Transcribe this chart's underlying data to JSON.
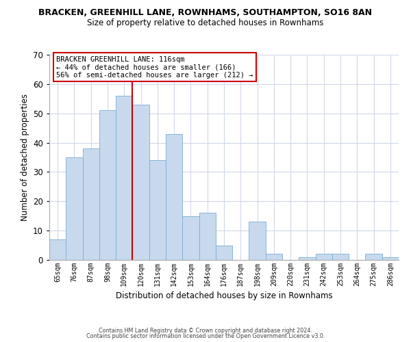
{
  "title1": "BRACKEN, GREENHILL LANE, ROWNHAMS, SOUTHAMPTON, SO16 8AN",
  "title2": "Size of property relative to detached houses in Rownhams",
  "xlabel": "Distribution of detached houses by size in Rownhams",
  "ylabel": "Number of detached properties",
  "bar_labels": [
    "65sqm",
    "76sqm",
    "87sqm",
    "98sqm",
    "109sqm",
    "120sqm",
    "131sqm",
    "142sqm",
    "153sqm",
    "164sqm",
    "176sqm",
    "187sqm",
    "198sqm",
    "209sqm",
    "220sqm",
    "231sqm",
    "242sqm",
    "253sqm",
    "264sqm",
    "275sqm",
    "286sqm"
  ],
  "bar_values": [
    7,
    35,
    38,
    51,
    56,
    53,
    34,
    43,
    15,
    16,
    5,
    0,
    13,
    2,
    0,
    1,
    2,
    2,
    0,
    2,
    1
  ],
  "bar_color": "#c8d9ed",
  "bar_edge_color": "#7aadd4",
  "ylim": [
    0,
    70
  ],
  "yticks": [
    0,
    10,
    20,
    30,
    40,
    50,
    60,
    70
  ],
  "vline_x": 5.0,
  "vline_color": "#cc0000",
  "annotation_title": "BRACKEN GREENHILL LANE: 116sqm",
  "annotation_line1": "← 44% of detached houses are smaller (166)",
  "annotation_line2": "56% of semi-detached houses are larger (212) →",
  "annotation_box_color": "#ffffff",
  "annotation_box_edge": "#cc0000",
  "footer1": "Contains HM Land Registry data © Crown copyright and database right 2024.",
  "footer2": "Contains public sector information licensed under the Open Government Licence v3.0.",
  "background_color": "#ffffff",
  "grid_color": "#d0d8e8"
}
